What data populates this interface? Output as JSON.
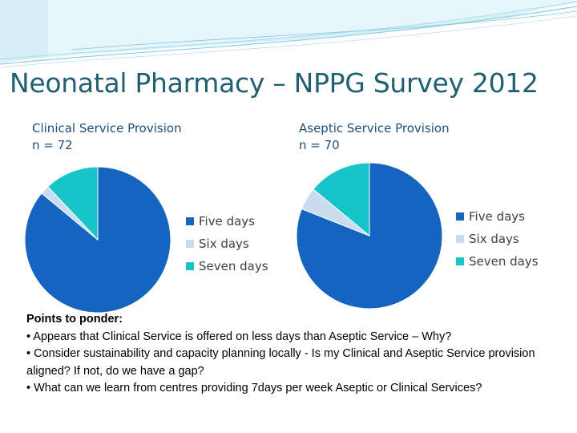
{
  "slide": {
    "title": "Neonatal Pharmacy – NPPG Survey 2012",
    "colors": {
      "title": "#1f5f72",
      "chart_title": "#1f4e79",
      "five_days": "#1565c0",
      "six_days": "#c9dcef",
      "seven_days": "#17c5c9"
    }
  },
  "chart_data": [
    {
      "type": "pie",
      "title": "Clinical Service Provision",
      "subtitle": "n = 72",
      "labels": [
        "Five days",
        "Six days",
        "Seven days"
      ],
      "values": [
        86,
        2,
        12
      ],
      "colors": [
        "#1565c0",
        "#c9dcef",
        "#17c5c9"
      ],
      "legend": "right"
    },
    {
      "type": "pie",
      "title": "Aseptic Service Provision",
      "subtitle": "n = 70",
      "labels": [
        "Five days",
        "Six days",
        "Seven days"
      ],
      "values": [
        81,
        5,
        14
      ],
      "colors": [
        "#1565c0",
        "#c9dcef",
        "#17c5c9"
      ],
      "legend": "right"
    }
  ],
  "notes": {
    "heading": "Points to ponder:",
    "bullets": [
      "• Appears that Clinical Service is offered on less days than Aseptic Service – Why?",
      "• Consider sustainability and capacity planning locally - Is my Clinical and Aseptic Service provision aligned? If not, do we have a gap?",
      "• What can we learn from centres providing 7days per week Aseptic or Clinical Services?"
    ]
  }
}
